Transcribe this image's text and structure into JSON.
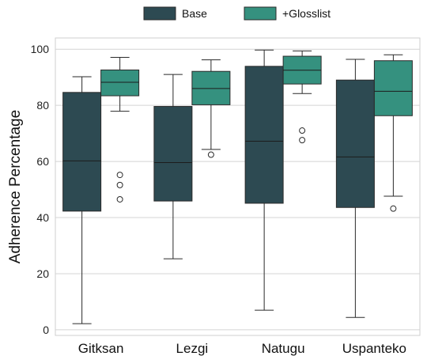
{
  "chart_data": {
    "type": "box",
    "ylabel": "Adherence Percentage",
    "ylim": [
      -2,
      104
    ],
    "yticks": [
      0,
      20,
      40,
      60,
      80,
      100
    ],
    "categories": [
      "Gitksan",
      "Lezgi",
      "Natugu",
      "Uspanteko"
    ],
    "grid": true,
    "legend_position": "top-center",
    "series": [
      {
        "name": "Base",
        "color": "#2d4a52",
        "boxes": [
          {
            "whisker_low": 2.2,
            "q1": 42.3,
            "median": 60.2,
            "q3": 84.6,
            "whisker_high": 90.2,
            "outliers": []
          },
          {
            "whisker_low": 25.3,
            "q1": 45.9,
            "median": 59.6,
            "q3": 79.6,
            "whisker_high": 91.0,
            "outliers": []
          },
          {
            "whisker_low": 7.0,
            "q1": 45.1,
            "median": 67.2,
            "q3": 93.9,
            "whisker_high": 99.7,
            "outliers": []
          },
          {
            "whisker_low": 4.4,
            "q1": 43.6,
            "median": 61.6,
            "q3": 89.0,
            "whisker_high": 96.4,
            "outliers": []
          }
        ]
      },
      {
        "name": "+Glosslist",
        "color": "#35917f",
        "boxes": [
          {
            "whisker_low": 77.9,
            "q1": 83.4,
            "median": 88.2,
            "q3": 92.6,
            "whisker_high": 97.1,
            "outliers": [
              55.2,
              51.6,
              46.5
            ]
          },
          {
            "whisker_low": 64.3,
            "q1": 80.2,
            "median": 86.0,
            "q3": 92.1,
            "whisker_high": 96.2,
            "outliers": [
              62.4
            ]
          },
          {
            "whisker_low": 84.2,
            "q1": 87.6,
            "median": 92.5,
            "q3": 97.5,
            "whisker_high": 99.4,
            "outliers": [
              71.0,
              67.6
            ]
          },
          {
            "whisker_low": 47.6,
            "q1": 76.3,
            "median": 85.0,
            "q3": 95.9,
            "whisker_high": 98.0,
            "outliers": [
              43.2
            ]
          }
        ]
      }
    ]
  }
}
